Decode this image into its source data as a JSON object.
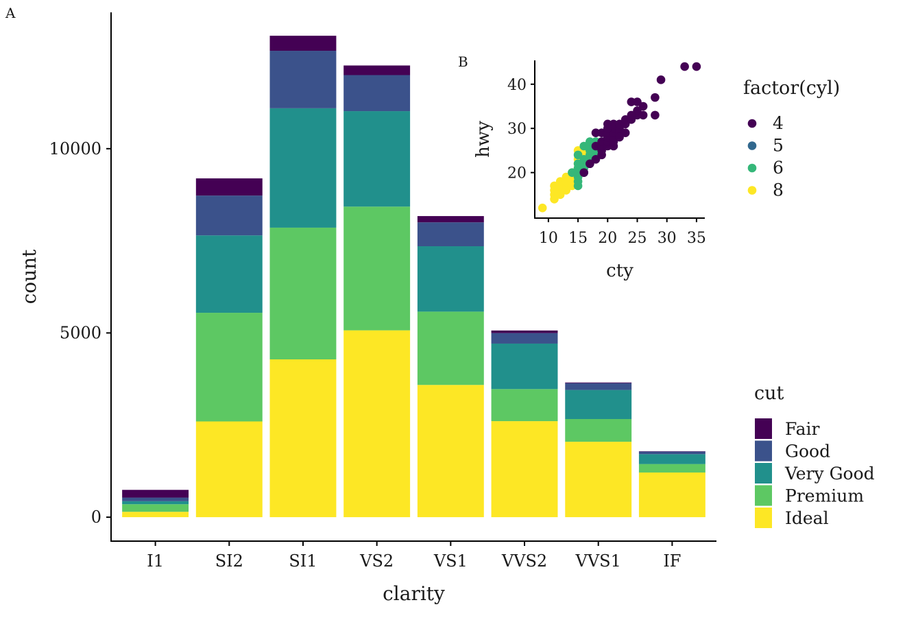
{
  "colors": {
    "Fair": "#440154",
    "Good": "#3b528b",
    "Very Good": "#21908c",
    "Premium": "#5dc863",
    "Ideal": "#fde725",
    "cyl4": "#440154",
    "cyl5": "#31688e",
    "cyl6": "#35b779",
    "cyl8": "#fde725"
  },
  "chart_data": [
    {
      "panel": "A",
      "type": "bar",
      "stacked": true,
      "xlabel": "clarity",
      "ylabel": "count",
      "categories": [
        "I1",
        "SI2",
        "SI1",
        "VS2",
        "VS1",
        "VVS2",
        "VVS1",
        "IF"
      ],
      "yticks": [
        0,
        5000,
        10000
      ],
      "ylim": [
        -650,
        13700
      ],
      "grid": false,
      "series": [
        {
          "name": "Ideal",
          "values": [
            146,
            2598,
            4282,
            5071,
            3589,
            2606,
            2047,
            1212
          ]
        },
        {
          "name": "Premium",
          "values": [
            205,
            2949,
            3575,
            3357,
            1989,
            870,
            616,
            230
          ]
        },
        {
          "name": "Very Good",
          "values": [
            84,
            2100,
            3240,
            2591,
            1775,
            1235,
            789,
            268
          ]
        },
        {
          "name": "Good",
          "values": [
            96,
            1081,
            1560,
            978,
            648,
            286,
            186,
            71
          ]
        },
        {
          "name": "Fair",
          "values": [
            210,
            466,
            408,
            261,
            170,
            69,
            17,
            9
          ]
        }
      ],
      "legend": {
        "title": "cut",
        "position": "right-bottom",
        "entries": [
          "Fair",
          "Good",
          "Very Good",
          "Premium",
          "Ideal"
        ]
      }
    },
    {
      "panel": "B",
      "type": "scatter",
      "xlabel": "cty",
      "ylabel": "hwy",
      "xticks": [
        10,
        15,
        20,
        25,
        30,
        35
      ],
      "yticks": [
        20,
        30,
        40
      ],
      "xlim": [
        7.7,
        36.4
      ],
      "ylim": [
        9.7,
        45.4
      ],
      "grid": false,
      "legend": {
        "title": "factor(cyl)",
        "position": "right-top",
        "entries": [
          "4",
          "5",
          "6",
          "8"
        ]
      },
      "series": [
        {
          "name": "8",
          "points": [
            [
              9,
              12
            ],
            [
              11,
              15
            ],
            [
              11,
              16
            ],
            [
              11,
              17
            ],
            [
              12,
              16
            ],
            [
              12,
              17
            ],
            [
              12,
              18
            ],
            [
              13,
              17
            ],
            [
              13,
              18
            ],
            [
              13,
              19
            ],
            [
              14,
              17
            ],
            [
              14,
              19
            ],
            [
              14,
              20
            ],
            [
              15,
              20
            ],
            [
              15,
              22
            ],
            [
              15,
              23
            ],
            [
              15,
              25
            ],
            [
              16,
              23
            ],
            [
              16,
              24
            ],
            [
              16,
              25
            ],
            [
              11,
              14
            ],
            [
              12,
              15
            ],
            [
              13,
              16
            ],
            [
              14,
              18
            ],
            [
              15,
              21
            ]
          ]
        },
        {
          "name": "6",
          "points": [
            [
              15,
              17
            ],
            [
              15,
              18
            ],
            [
              15,
              19
            ],
            [
              15,
              20
            ],
            [
              15,
              21
            ],
            [
              15,
              22
            ],
            [
              16,
              21
            ],
            [
              16,
              22
            ],
            [
              16,
              23
            ],
            [
              16,
              26
            ],
            [
              17,
              23
            ],
            [
              17,
              24
            ],
            [
              17,
              25
            ],
            [
              17,
              26
            ],
            [
              17,
              27
            ],
            [
              18,
              24
            ],
            [
              18,
              25
            ],
            [
              18,
              26
            ],
            [
              18,
              27
            ],
            [
              19,
              26
            ],
            [
              14,
              20
            ],
            [
              15,
              24
            ],
            [
              16,
              20
            ],
            [
              17,
              22
            ],
            [
              19,
              27
            ]
          ]
        },
        {
          "name": "5",
          "points": [
            [
              20,
              28
            ],
            [
              20,
              29
            ],
            [
              21,
              29
            ]
          ]
        },
        {
          "name": "4",
          "points": [
            [
              16,
              20
            ],
            [
              17,
              22
            ],
            [
              18,
              23
            ],
            [
              18,
              26
            ],
            [
              18,
              29
            ],
            [
              19,
              24
            ],
            [
              19,
              25
            ],
            [
              19,
              26
            ],
            [
              19,
              27
            ],
            [
              19,
              29
            ],
            [
              20,
              26
            ],
            [
              20,
              27
            ],
            [
              20,
              28
            ],
            [
              20,
              29
            ],
            [
              20,
              31
            ],
            [
              21,
              26
            ],
            [
              21,
              27
            ],
            [
              21,
              28
            ],
            [
              21,
              29
            ],
            [
              21,
              30
            ],
            [
              21,
              31
            ],
            [
              22,
              29
            ],
            [
              22,
              30
            ],
            [
              22,
              31
            ],
            [
              23,
              29
            ],
            [
              23,
              31
            ],
            [
              23,
              32
            ],
            [
              24,
              32
            ],
            [
              24,
              36
            ],
            [
              25,
              33
            ],
            [
              25,
              34
            ],
            [
              25,
              36
            ],
            [
              26,
              33
            ],
            [
              26,
              35
            ],
            [
              28,
              33
            ],
            [
              28,
              37
            ],
            [
              29,
              41
            ],
            [
              33,
              44
            ],
            [
              35,
              44
            ],
            [
              24,
              33
            ],
            [
              22,
              28
            ],
            [
              20,
              30
            ]
          ]
        }
      ]
    }
  ],
  "labels": {
    "panel_a": "A",
    "panel_b": "B"
  }
}
